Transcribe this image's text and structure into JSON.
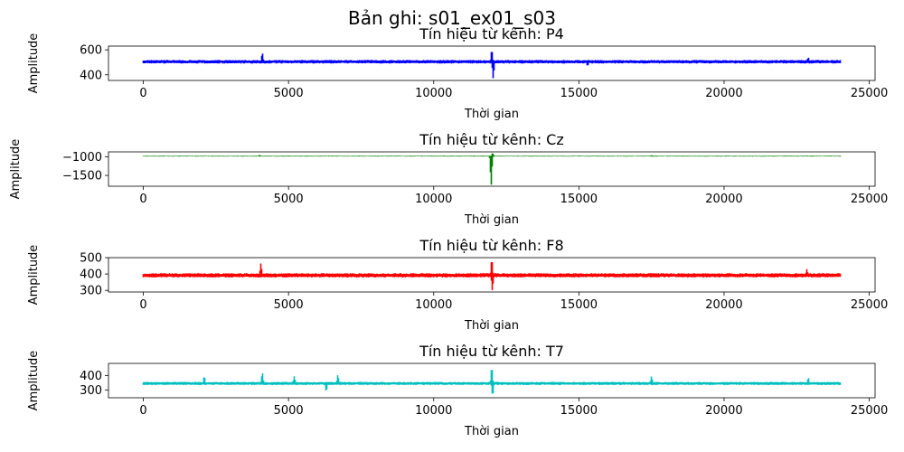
{
  "figure": {
    "suptitle": "Bản ghi: s01_ex01_s03"
  },
  "chart_data": [
    {
      "type": "line",
      "title": "Tín hiệu từ kênh: P4",
      "xlabel": "Thời gian",
      "ylabel": "Amplitude",
      "color": "#0000ff",
      "x_ticks": [
        0,
        5000,
        10000,
        15000,
        20000,
        25000
      ],
      "x_tick_labels": [
        "0",
        "5000",
        "10000",
        "15000",
        "20000",
        "25000"
      ],
      "y_ticks": [
        400,
        600
      ],
      "y_tick_labels": [
        "400",
        "600"
      ],
      "xlim": [
        -1200,
        25200
      ],
      "ylim": [
        355,
        630
      ],
      "n_samples": 24000,
      "baseline": 505,
      "noise_amplitude": 14,
      "spikes": [
        {
          "x": 4100,
          "value": 575
        },
        {
          "x": 12000,
          "value": 600
        },
        {
          "x": 12050,
          "value": 372
        },
        {
          "x": 15300,
          "value": 470
        },
        {
          "x": 22900,
          "value": 540
        }
      ],
      "grid": false
    },
    {
      "type": "line",
      "title": "Tín hiệu từ kênh: Cz",
      "xlabel": "Thời gian",
      "ylabel": "Amplitude",
      "color": "#008000",
      "x_ticks": [
        0,
        5000,
        10000,
        15000,
        20000,
        25000
      ],
      "x_tick_labels": [
        "0",
        "5000",
        "10000",
        "15000",
        "20000",
        "25000"
      ],
      "y_ticks": [
        -1000,
        -1500
      ],
      "y_tick_labels": [
        "−1000",
        "−1500"
      ],
      "xlim": [
        -1200,
        25200
      ],
      "ylim": [
        -1790,
        -870
      ],
      "n_samples": 24000,
      "baseline": -985,
      "noise_amplitude": 10,
      "spikes": [
        {
          "x": 4000,
          "value": -950
        },
        {
          "x": 11980,
          "value": -1760
        },
        {
          "x": 12030,
          "value": -900
        },
        {
          "x": 17500,
          "value": -960
        }
      ],
      "grid": false
    },
    {
      "type": "line",
      "title": "Tín hiệu từ kênh: F8",
      "xlabel": "Thời gian",
      "ylabel": "Amplitude",
      "color": "#ff0000",
      "x_ticks": [
        0,
        5000,
        10000,
        15000,
        20000,
        25000
      ],
      "x_tick_labels": [
        "0",
        "5000",
        "10000",
        "15000",
        "20000",
        "25000"
      ],
      "y_ticks": [
        300,
        400,
        500
      ],
      "y_tick_labels": [
        "300",
        "400",
        "500"
      ],
      "xlim": [
        -1200,
        25200
      ],
      "ylim": [
        290,
        500
      ],
      "n_samples": 24000,
      "baseline": 392,
      "noise_amplitude": 13,
      "spikes": [
        {
          "x": 4050,
          "value": 465
        },
        {
          "x": 12000,
          "value": 490
        },
        {
          "x": 12020,
          "value": 300
        },
        {
          "x": 22850,
          "value": 430
        }
      ],
      "grid": false
    },
    {
      "type": "line",
      "title": "Tín hiệu từ kênh: T7",
      "xlabel": "Thời gian",
      "ylabel": "Amplitude",
      "color": "#00bfbf",
      "x_ticks": [
        0,
        5000,
        10000,
        15000,
        20000,
        25000
      ],
      "x_tick_labels": [
        "0",
        "5000",
        "10000",
        "15000",
        "20000",
        "25000"
      ],
      "y_ticks": [
        300,
        400
      ],
      "y_tick_labels": [
        "300",
        "400"
      ],
      "xlim": [
        -1200,
        25200
      ],
      "ylim": [
        245,
        485
      ],
      "n_samples": 24000,
      "baseline": 345,
      "noise_amplitude": 11,
      "spikes": [
        {
          "x": 2100,
          "value": 395
        },
        {
          "x": 4100,
          "value": 420
        },
        {
          "x": 5200,
          "value": 395
        },
        {
          "x": 6300,
          "value": 290
        },
        {
          "x": 6700,
          "value": 405
        },
        {
          "x": 12000,
          "value": 460
        },
        {
          "x": 12030,
          "value": 260
        },
        {
          "x": 17500,
          "value": 395
        },
        {
          "x": 22900,
          "value": 385
        }
      ],
      "grid": false
    }
  ]
}
